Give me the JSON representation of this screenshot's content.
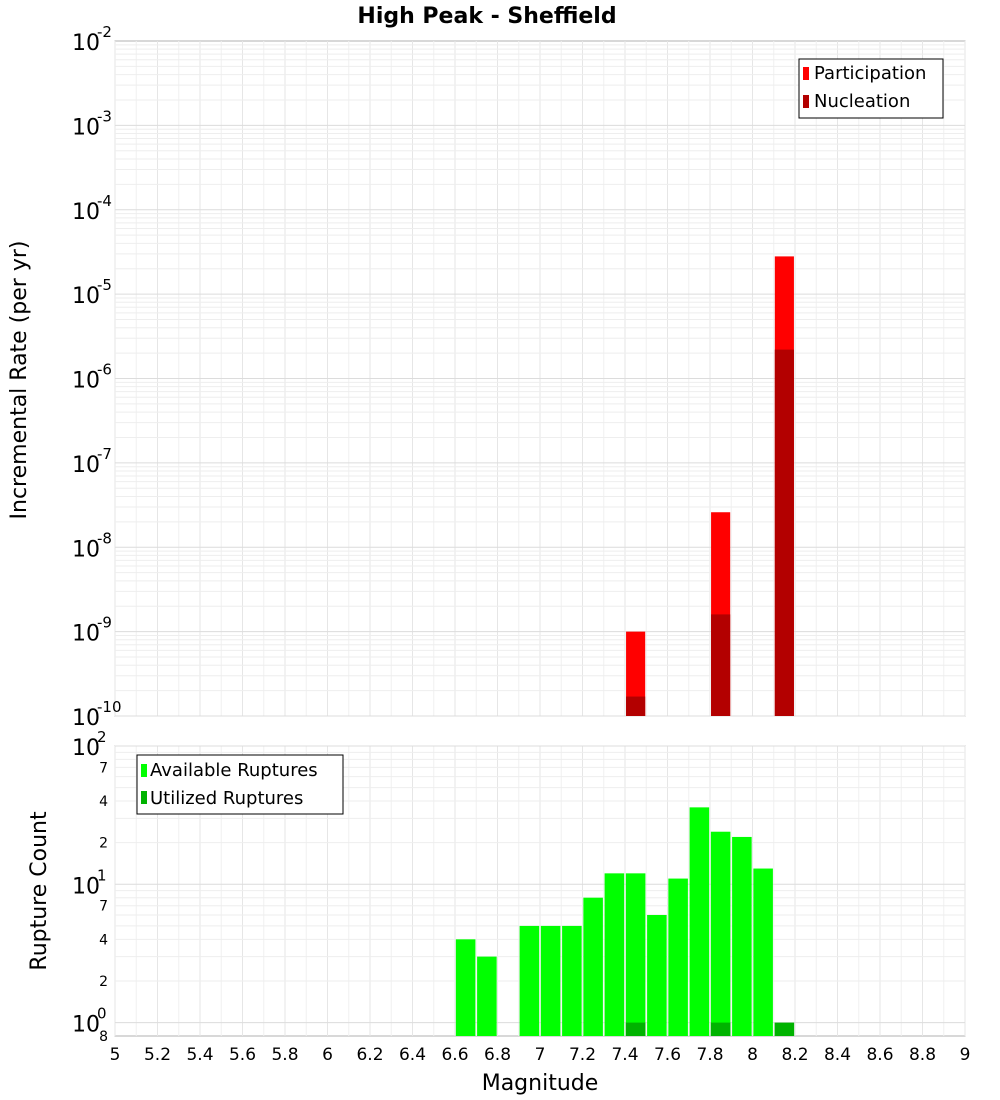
{
  "chart_data": [
    {
      "type": "bar",
      "title": "High Peak - Sheffield",
      "xlabel": "Magnitude",
      "ylabel": "Incremental Rate (per yr)",
      "yscale": "log",
      "ylim": [
        1e-10,
        0.01
      ],
      "xlim": [
        5,
        9
      ],
      "y_tick_labels": [
        {
          "base": "10",
          "exp": "-2"
        },
        {
          "base": "10",
          "exp": "-3"
        },
        {
          "base": "10",
          "exp": "-4"
        },
        {
          "base": "10",
          "exp": "-5"
        },
        {
          "base": "10",
          "exp": "-6"
        },
        {
          "base": "10",
          "exp": "-7"
        },
        {
          "base": "10",
          "exp": "-8"
        },
        {
          "base": "10",
          "exp": "-9"
        },
        {
          "base": "10",
          "exp": "-10"
        }
      ],
      "legend": {
        "position": "top-right",
        "entries": [
          {
            "name": "Participation",
            "color": "#ff0000"
          },
          {
            "name": "Nucleation",
            "color": "#b30000"
          }
        ]
      },
      "series": [
        {
          "name": "Participation",
          "color": "#ff0000",
          "x": [
            7.45,
            7.85,
            8.15
          ],
          "values": [
            1e-09,
            2.6e-08,
            2.8e-05
          ]
        },
        {
          "name": "Nucleation",
          "color": "#b30000",
          "x": [
            7.45,
            7.85,
            8.15
          ],
          "values": [
            1.7e-10,
            1.6e-09,
            2.2e-06
          ]
        }
      ]
    },
    {
      "type": "bar",
      "title": "",
      "xlabel": "Magnitude",
      "ylabel": "Rupture Count",
      "yscale": "log",
      "ylim": [
        0.8,
        100
      ],
      "xlim": [
        5,
        9
      ],
      "x_ticks": [
        "5",
        "5.2",
        "5.4",
        "5.6",
        "5.8",
        "6",
        "6.2",
        "6.4",
        "6.6",
        "6.8",
        "7",
        "7.2",
        "7.4",
        "7.6",
        "7.8",
        "8",
        "8.2",
        "8.4",
        "8.6",
        "8.8",
        "9"
      ],
      "y_major_labels": [
        {
          "base": "10",
          "exp": "2"
        },
        {
          "base": "10",
          "exp": "1"
        },
        {
          "base": "10",
          "exp": "0"
        }
      ],
      "y_minor_labels": [
        {
          "value": 70,
          "label": "7"
        },
        {
          "value": 40,
          "label": "4"
        },
        {
          "value": 20,
          "label": "2"
        },
        {
          "value": 7,
          "label": "7"
        },
        {
          "value": 4,
          "label": "4"
        },
        {
          "value": 2,
          "label": "2"
        },
        {
          "value": 0.8,
          "label": "8"
        }
      ],
      "legend": {
        "position": "top-left",
        "entries": [
          {
            "name": "Available Ruptures",
            "color": "#00ff00"
          },
          {
            "name": "Utilized Ruptures",
            "color": "#00b300"
          }
        ]
      },
      "series": [
        {
          "name": "Available Ruptures",
          "color": "#00ff00",
          "x": [
            6.65,
            6.75,
            6.95,
            7.05,
            7.15,
            7.25,
            7.35,
            7.45,
            7.55,
            7.65,
            7.75,
            7.85,
            7.95,
            8.05
          ],
          "values": [
            4,
            3,
            5,
            5,
            5,
            8,
            12,
            12,
            6,
            11,
            36,
            24,
            22,
            13
          ]
        },
        {
          "name": "Utilized Ruptures",
          "color": "#00b300",
          "x": [
            7.45,
            7.85,
            8.15
          ],
          "values": [
            1,
            1,
            1
          ]
        }
      ]
    }
  ]
}
